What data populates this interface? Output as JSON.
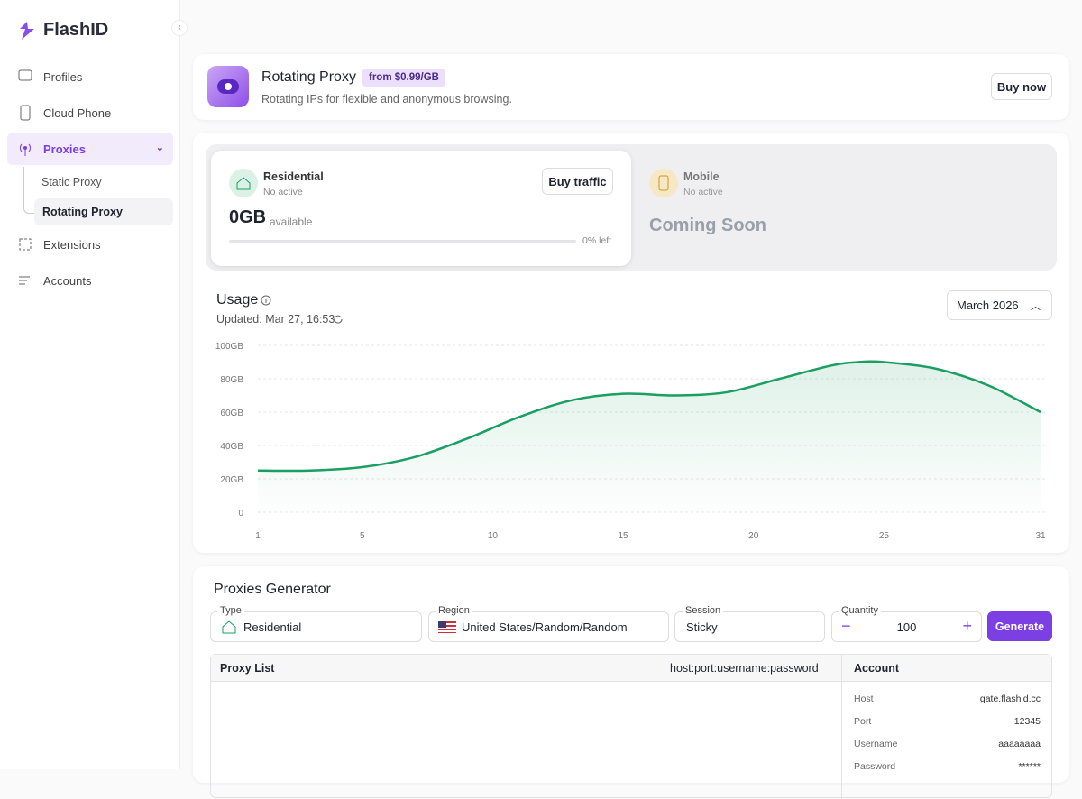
{
  "sidebar": {
    "logo": "FlashID",
    "nav": [
      "Profiles",
      "Cloud Phone",
      "Proxies",
      "Static Proxy",
      "Rotating Proxy",
      "Extensions",
      "Accounts"
    ]
  },
  "header": {
    "title": "Rotating Proxy",
    "badge": "from $0.99/GB",
    "subtitle": "Rotating IPs for flexible and anonymous browsing.",
    "button": "Buy now"
  },
  "residential": {
    "title": "Residential",
    "status": "No active",
    "amount": "0GB",
    "amount_note": "available",
    "button": "Buy traffic",
    "left": "0% left"
  },
  "mobile": {
    "title": "Mobile",
    "status": "No active",
    "coming": "Coming Soon"
  },
  "usage": {
    "title": "Usage",
    "updated": "Updated: Mar 27, 16:53",
    "month": "March 2026",
    "chart": {
      "type": "line",
      "color": "#1a9e62",
      "grid": true,
      "x": [
        1,
        3,
        5,
        7,
        9,
        11,
        13,
        15,
        17,
        19,
        21,
        23,
        24,
        25,
        27,
        29,
        31
      ],
      "values": [
        25,
        25,
        27,
        33,
        44,
        57,
        67,
        71,
        70,
        72,
        80,
        88,
        90,
        90,
        86,
        76,
        60
      ],
      "xlim": [
        1,
        31
      ],
      "xticks": [
        1,
        5,
        10,
        15,
        20,
        25,
        31
      ],
      "ylim": [
        0,
        100
      ],
      "yticks": [
        0,
        {
          "value": 20,
          "label": "20GB"
        },
        {
          "value": 40,
          "label": "40GB"
        },
        {
          "value": 60,
          "label": "60GB"
        },
        {
          "value": 80,
          "label": "80GB"
        },
        {
          "value": 100,
          "label": "100GB"
        }
      ]
    }
  },
  "generator": {
    "title": "Proxies Generator",
    "fields": [
      {
        "label": "Type",
        "value": "Residential"
      },
      {
        "label": "Region",
        "value": "United States/Random/Random"
      },
      {
        "label": "Session",
        "value": "Sticky"
      },
      {
        "label": "Quantity",
        "value": 100
      }
    ],
    "button": "Generate",
    "list_title": "Proxy List",
    "format": "host:port:username:password",
    "account_title": "Account",
    "account": [
      [
        "Host",
        "gate.flashid.cc"
      ],
      [
        "Port",
        "12345"
      ],
      [
        "Username",
        "aaaaaaaa"
      ],
      [
        "Password",
        "******"
      ]
    ]
  }
}
